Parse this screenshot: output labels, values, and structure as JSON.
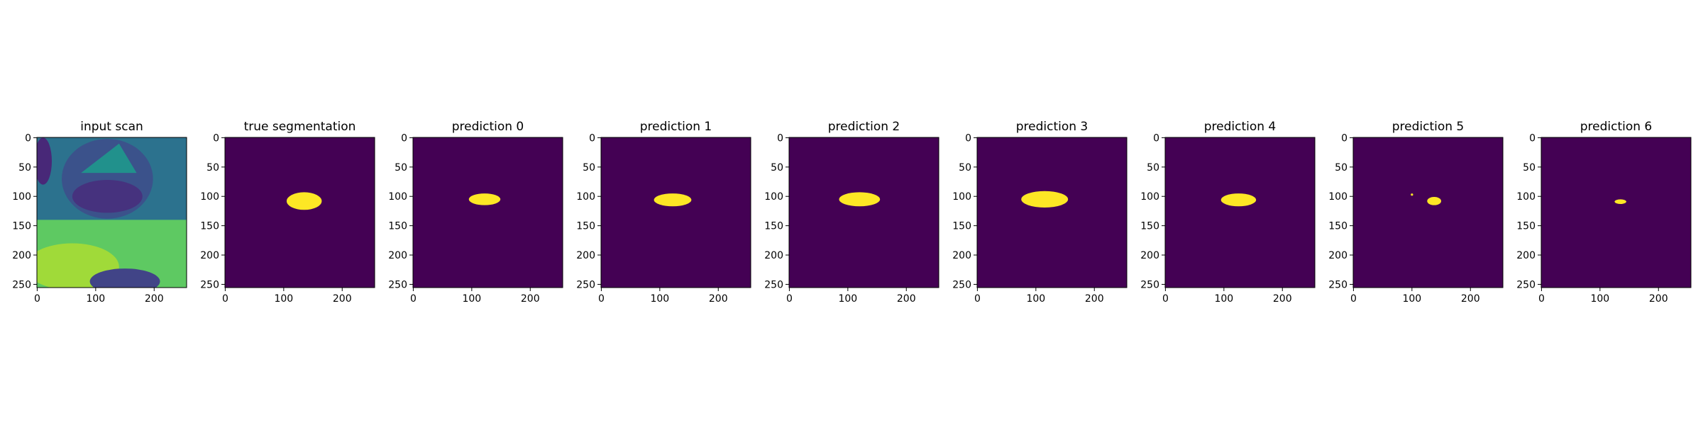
{
  "chart_data": [
    {
      "type": "image",
      "title": "input scan",
      "xlim": [
        -0.5,
        255.5
      ],
      "ylim": [
        255.5,
        -0.5
      ],
      "xticks": [
        0,
        100,
        200
      ],
      "yticks": [
        0,
        50,
        100,
        150,
        200,
        250
      ]
    },
    {
      "type": "image",
      "title": "true segmentation",
      "xlim": [
        -0.5,
        255.5
      ],
      "ylim": [
        255.5,
        -0.5
      ],
      "xticks": [
        0,
        100,
        200
      ],
      "yticks": [
        0,
        50,
        100,
        150,
        200,
        250
      ]
    },
    {
      "type": "image",
      "title": "prediction 0",
      "xlim": [
        -0.5,
        255.5
      ],
      "ylim": [
        255.5,
        -0.5
      ],
      "xticks": [
        0,
        100,
        200
      ],
      "yticks": [
        0,
        50,
        100,
        150,
        200,
        250
      ]
    },
    {
      "type": "image",
      "title": "prediction 1",
      "xlim": [
        -0.5,
        255.5
      ],
      "ylim": [
        255.5,
        -0.5
      ],
      "xticks": [
        0,
        100,
        200
      ],
      "yticks": [
        0,
        50,
        100,
        150,
        200,
        250
      ]
    },
    {
      "type": "image",
      "title": "prediction 2",
      "xlim": [
        -0.5,
        255.5
      ],
      "ylim": [
        255.5,
        -0.5
      ],
      "xticks": [
        0,
        100,
        200
      ],
      "yticks": [
        0,
        50,
        100,
        150,
        200,
        250
      ]
    },
    {
      "type": "image",
      "title": "prediction 3",
      "xlim": [
        -0.5,
        255.5
      ],
      "ylim": [
        255.5,
        -0.5
      ],
      "xticks": [
        0,
        100,
        200
      ],
      "yticks": [
        0,
        50,
        100,
        150,
        200,
        250
      ]
    },
    {
      "type": "image",
      "title": "prediction 4",
      "xlim": [
        -0.5,
        255.5
      ],
      "ylim": [
        255.5,
        -0.5
      ],
      "xticks": [
        0,
        100,
        200
      ],
      "yticks": [
        0,
        50,
        100,
        150,
        200,
        250
      ]
    },
    {
      "type": "image",
      "title": "prediction 5",
      "xlim": [
        -0.5,
        255.5
      ],
      "ylim": [
        255.5,
        -0.5
      ],
      "xticks": [
        0,
        100,
        200
      ],
      "yticks": [
        0,
        50,
        100,
        150,
        200,
        250
      ]
    },
    {
      "type": "image",
      "title": "prediction 6",
      "xlim": [
        -0.5,
        255.5
      ],
      "ylim": [
        255.5,
        -0.5
      ],
      "xticks": [
        0,
        100,
        200
      ],
      "yticks": [
        0,
        50,
        100,
        150,
        200,
        250
      ]
    }
  ]
}
